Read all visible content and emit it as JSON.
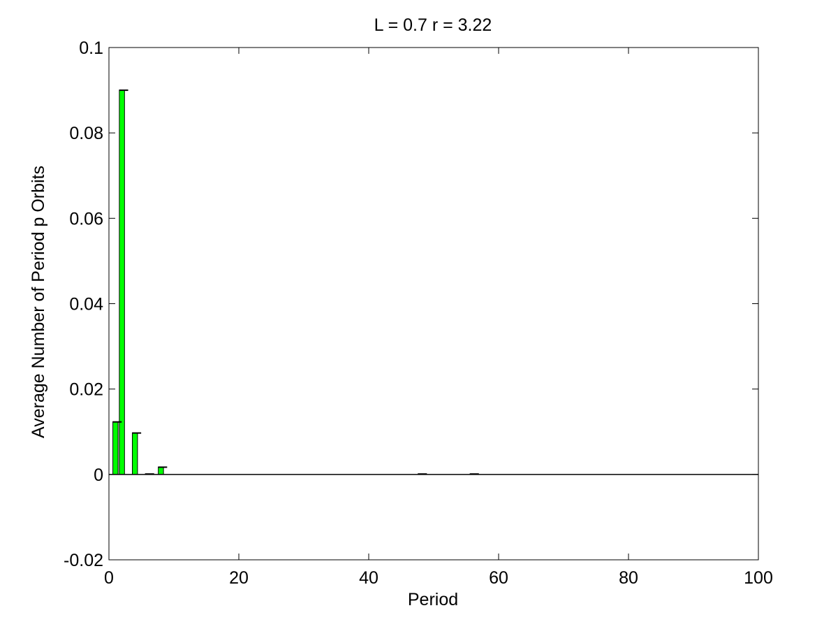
{
  "chart_data": {
    "type": "bar",
    "title": "L = 0.7 r = 3.22",
    "xlabel": "Period",
    "ylabel": "Average Number of Period p Orbits",
    "xlim": [
      0,
      100
    ],
    "ylim": [
      -0.02,
      0.1
    ],
    "xticks": [
      0,
      20,
      40,
      60,
      80,
      100
    ],
    "yticks": [
      -0.02,
      0,
      0.02,
      0.04,
      0.06,
      0.08,
      0.1
    ],
    "xtick_labels": [
      "0",
      "20",
      "40",
      "60",
      "80",
      "100"
    ],
    "ytick_labels": [
      "-0.02",
      "0",
      "0.02",
      "0.04",
      "0.06",
      "0.08",
      "0.1"
    ],
    "grid": false,
    "bar_color": "#00ff00",
    "errorbar_color": "#000000",
    "bars": [
      {
        "x": 1,
        "value": 0.0123
      },
      {
        "x": 2,
        "value": 0.09
      },
      {
        "x": 4,
        "value": 0.0097
      },
      {
        "x": 6,
        "value": 0.0001
      },
      {
        "x": 8,
        "value": 0.0017
      },
      {
        "x": 48,
        "value": 0.0001
      },
      {
        "x": 56,
        "value": 0.0001
      }
    ]
  }
}
